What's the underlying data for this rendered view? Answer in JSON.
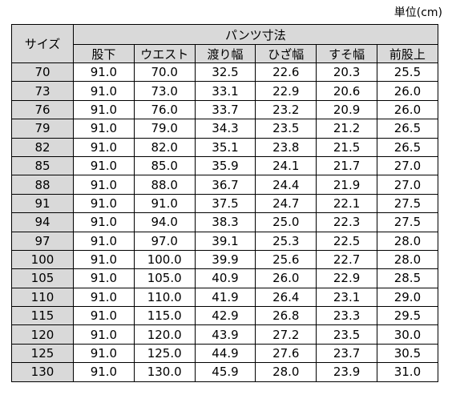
{
  "unit_label": "単位(cm)",
  "table": {
    "size_header": "サイズ",
    "group_header": "パンツ寸法",
    "columns": [
      "股下",
      "ウエスト",
      "渡り幅",
      "ひざ幅",
      "すそ幅",
      "前股上"
    ],
    "rows": [
      {
        "size": "70",
        "values": [
          "91.0",
          "70.0",
          "32.5",
          "22.6",
          "20.3",
          "25.5"
        ]
      },
      {
        "size": "73",
        "values": [
          "91.0",
          "73.0",
          "33.1",
          "22.9",
          "20.6",
          "26.0"
        ]
      },
      {
        "size": "76",
        "values": [
          "91.0",
          "76.0",
          "33.7",
          "23.2",
          "20.9",
          "26.0"
        ]
      },
      {
        "size": "79",
        "values": [
          "91.0",
          "79.0",
          "34.3",
          "23.5",
          "21.2",
          "26.5"
        ]
      },
      {
        "size": "82",
        "values": [
          "91.0",
          "82.0",
          "35.1",
          "23.8",
          "21.5",
          "26.5"
        ]
      },
      {
        "size": "85",
        "values": [
          "91.0",
          "85.0",
          "35.9",
          "24.1",
          "21.7",
          "27.0"
        ]
      },
      {
        "size": "88",
        "values": [
          "91.0",
          "88.0",
          "36.7",
          "24.4",
          "21.9",
          "27.0"
        ]
      },
      {
        "size": "91",
        "values": [
          "91.0",
          "91.0",
          "37.5",
          "24.7",
          "22.1",
          "27.5"
        ]
      },
      {
        "size": "94",
        "values": [
          "91.0",
          "94.0",
          "38.3",
          "25.0",
          "22.3",
          "27.5"
        ]
      },
      {
        "size": "97",
        "values": [
          "91.0",
          "97.0",
          "39.1",
          "25.3",
          "22.5",
          "28.0"
        ]
      },
      {
        "size": "100",
        "values": [
          "91.0",
          "100.0",
          "39.9",
          "25.6",
          "22.7",
          "28.0"
        ]
      },
      {
        "size": "105",
        "values": [
          "91.0",
          "105.0",
          "40.9",
          "26.0",
          "22.9",
          "28.5"
        ]
      },
      {
        "size": "110",
        "values": [
          "91.0",
          "110.0",
          "41.9",
          "26.4",
          "23.1",
          "29.0"
        ]
      },
      {
        "size": "115",
        "values": [
          "91.0",
          "115.0",
          "42.9",
          "26.8",
          "23.3",
          "29.5"
        ]
      },
      {
        "size": "120",
        "values": [
          "91.0",
          "120.0",
          "43.9",
          "27.2",
          "23.5",
          "30.0"
        ]
      },
      {
        "size": "125",
        "values": [
          "91.0",
          "125.0",
          "44.9",
          "27.6",
          "23.7",
          "30.5"
        ]
      },
      {
        "size": "130",
        "values": [
          "91.0",
          "130.0",
          "45.9",
          "28.0",
          "23.9",
          "31.0"
        ]
      }
    ]
  },
  "colors": {
    "header_background": "#d9d9d9",
    "border": "#000000"
  }
}
